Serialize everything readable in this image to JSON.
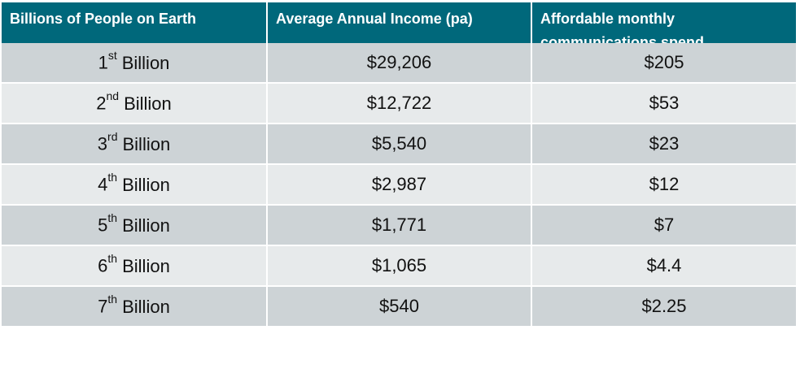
{
  "table": {
    "header": [
      "Billions of People on Earth",
      "Average Annual Income (pa)",
      "Affordable monthly communications spend"
    ],
    "rows": [
      {
        "ordinal": "1",
        "suffix": "st",
        "label": "Billion",
        "income": "$29,206",
        "spend": "$205"
      },
      {
        "ordinal": "2",
        "suffix": "nd",
        "label": "Billion",
        "income": "$12,722",
        "spend": "$53"
      },
      {
        "ordinal": "3",
        "suffix": "rd",
        "label": "Billion",
        "income": "$5,540",
        "spend": "$23"
      },
      {
        "ordinal": "4",
        "suffix": "th",
        "label": "Billion",
        "income": "$2,987",
        "spend": "$12"
      },
      {
        "ordinal": "5",
        "suffix": "th",
        "label": "Billion",
        "income": "$1,771",
        "spend": "$7"
      },
      {
        "ordinal": "6",
        "suffix": "th",
        "label": "Billion",
        "income": "$1,065",
        "spend": "$4.4"
      },
      {
        "ordinal": "7",
        "suffix": "th",
        "label": "Billion",
        "income": "$540",
        "spend": "$2.25"
      }
    ]
  }
}
